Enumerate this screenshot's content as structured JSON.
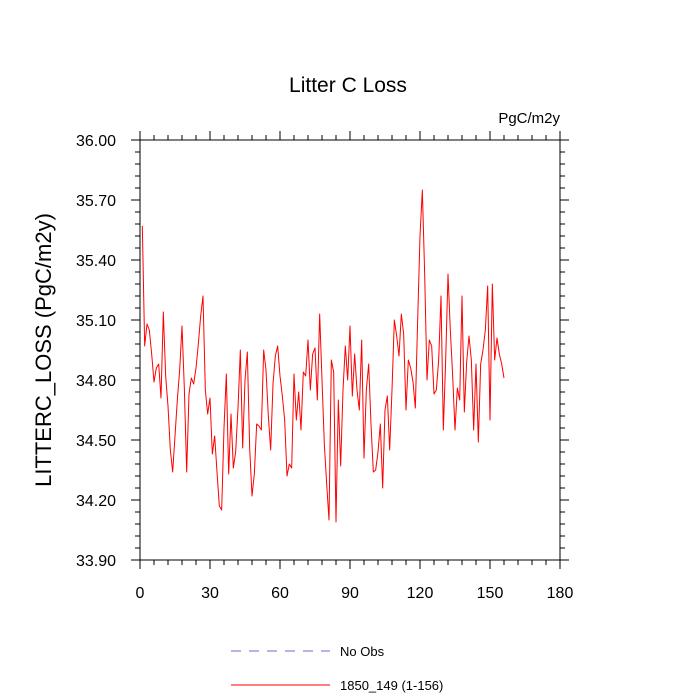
{
  "chart_data": {
    "type": "line",
    "title": "Litter C Loss",
    "units_label": "PgC/m2y",
    "xlabel": "",
    "ylabel": "LITTERC_LOSS  (PgC/m2y)",
    "xlim": [
      0,
      180
    ],
    "ylim": [
      33.9,
      36.0
    ],
    "x_ticks": [
      0,
      30,
      60,
      90,
      120,
      150,
      180
    ],
    "y_ticks": [
      33.9,
      34.2,
      34.5,
      34.8,
      35.1,
      35.4,
      35.7,
      36.0
    ],
    "x_tick_labels": [
      "0",
      "30",
      "60",
      "90",
      "120",
      "150",
      "180"
    ],
    "y_tick_labels": [
      "33.90",
      "34.20",
      "34.50",
      "34.80",
      "35.10",
      "35.40",
      "35.70",
      "36.00"
    ],
    "grid": false,
    "legend_position": "bottom",
    "legend": [
      {
        "name": "No Obs",
        "color": "#6b6bd6",
        "style": "dashed"
      },
      {
        "name": "1850_149 (1-156)",
        "color": "#ff0000",
        "style": "solid"
      }
    ],
    "series": [
      {
        "name": "1850_149 (1-156)",
        "color": "#ff0000",
        "x_start": 1,
        "values": [
          35.57,
          34.97,
          35.08,
          35.05,
          34.93,
          34.79,
          34.86,
          34.88,
          34.71,
          35.14,
          34.82,
          34.67,
          34.45,
          34.34,
          34.52,
          34.7,
          34.85,
          35.07,
          34.76,
          34.34,
          34.73,
          34.81,
          34.78,
          34.86,
          34.98,
          35.12,
          35.22,
          34.75,
          34.63,
          34.71,
          34.43,
          34.52,
          34.34,
          34.17,
          34.15,
          34.56,
          34.83,
          34.33,
          34.63,
          34.36,
          34.44,
          34.66,
          34.95,
          34.46,
          34.8,
          34.94,
          34.46,
          34.22,
          34.33,
          34.58,
          34.57,
          34.55,
          34.95,
          34.85,
          34.62,
          34.45,
          34.78,
          34.92,
          34.97,
          34.82,
          34.72,
          34.6,
          34.32,
          34.38,
          34.36,
          34.83,
          34.6,
          34.74,
          34.55,
          34.84,
          34.82,
          35.0,
          34.75,
          34.93,
          34.96,
          34.7,
          35.13,
          34.8,
          34.48,
          34.28,
          34.1,
          34.9,
          34.84,
          34.09,
          34.7,
          34.37,
          34.75,
          34.97,
          34.8,
          35.07,
          34.72,
          34.93,
          34.75,
          34.65,
          35.0,
          34.41,
          34.75,
          34.88,
          34.58,
          34.34,
          34.35,
          34.44,
          34.58,
          34.26,
          34.65,
          34.72,
          34.45,
          34.75,
          35.1,
          35.02,
          34.92,
          35.13,
          35.03,
          34.65,
          34.9,
          34.86,
          34.79,
          34.66,
          35.1,
          35.52,
          35.75,
          35.33,
          34.8,
          35.0,
          34.97,
          34.73,
          34.75,
          34.9,
          35.22,
          34.55,
          34.9,
          35.33,
          35.05,
          34.82,
          34.55,
          34.76,
          34.7,
          35.22,
          34.64,
          34.89,
          35.02,
          34.9,
          34.55,
          34.88,
          34.49,
          34.88,
          34.95,
          35.05,
          35.27,
          34.6,
          35.28,
          34.9,
          35.01,
          34.93,
          34.88,
          34.81
        ]
      }
    ]
  }
}
